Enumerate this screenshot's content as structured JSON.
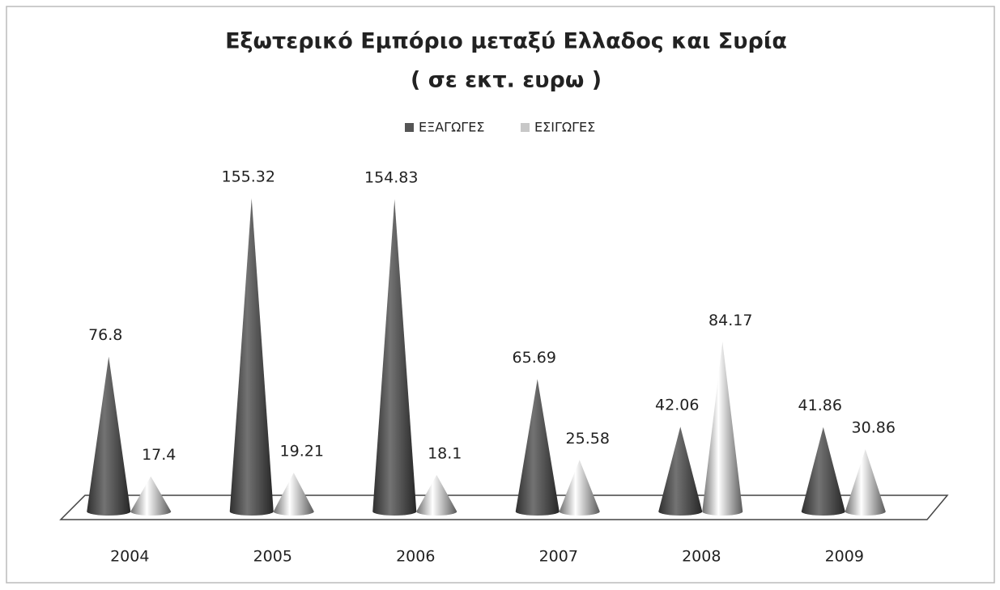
{
  "chart_data": {
    "type": "cone",
    "title": "Εξωτερικό Εμπόριο μεταξύ Ελλαδος και Συρία",
    "subtitle": "( σε εκτ. ευρω )",
    "categories": [
      "2004",
      "2005",
      "2006",
      "2007",
      "2008",
      "2009"
    ],
    "series": [
      {
        "name": "ΕΞΑΓΩΓΕΣ",
        "color": "#555555",
        "values": [
          76.8,
          155.32,
          154.83,
          65.69,
          42.06,
          41.86
        ]
      },
      {
        "name": "ΕΣΙΓΩΓΕΣ",
        "color": "#c8c8c8",
        "values": [
          17.4,
          19.21,
          18.1,
          25.58,
          84.17,
          30.86
        ]
      }
    ],
    "legend": "top"
  }
}
